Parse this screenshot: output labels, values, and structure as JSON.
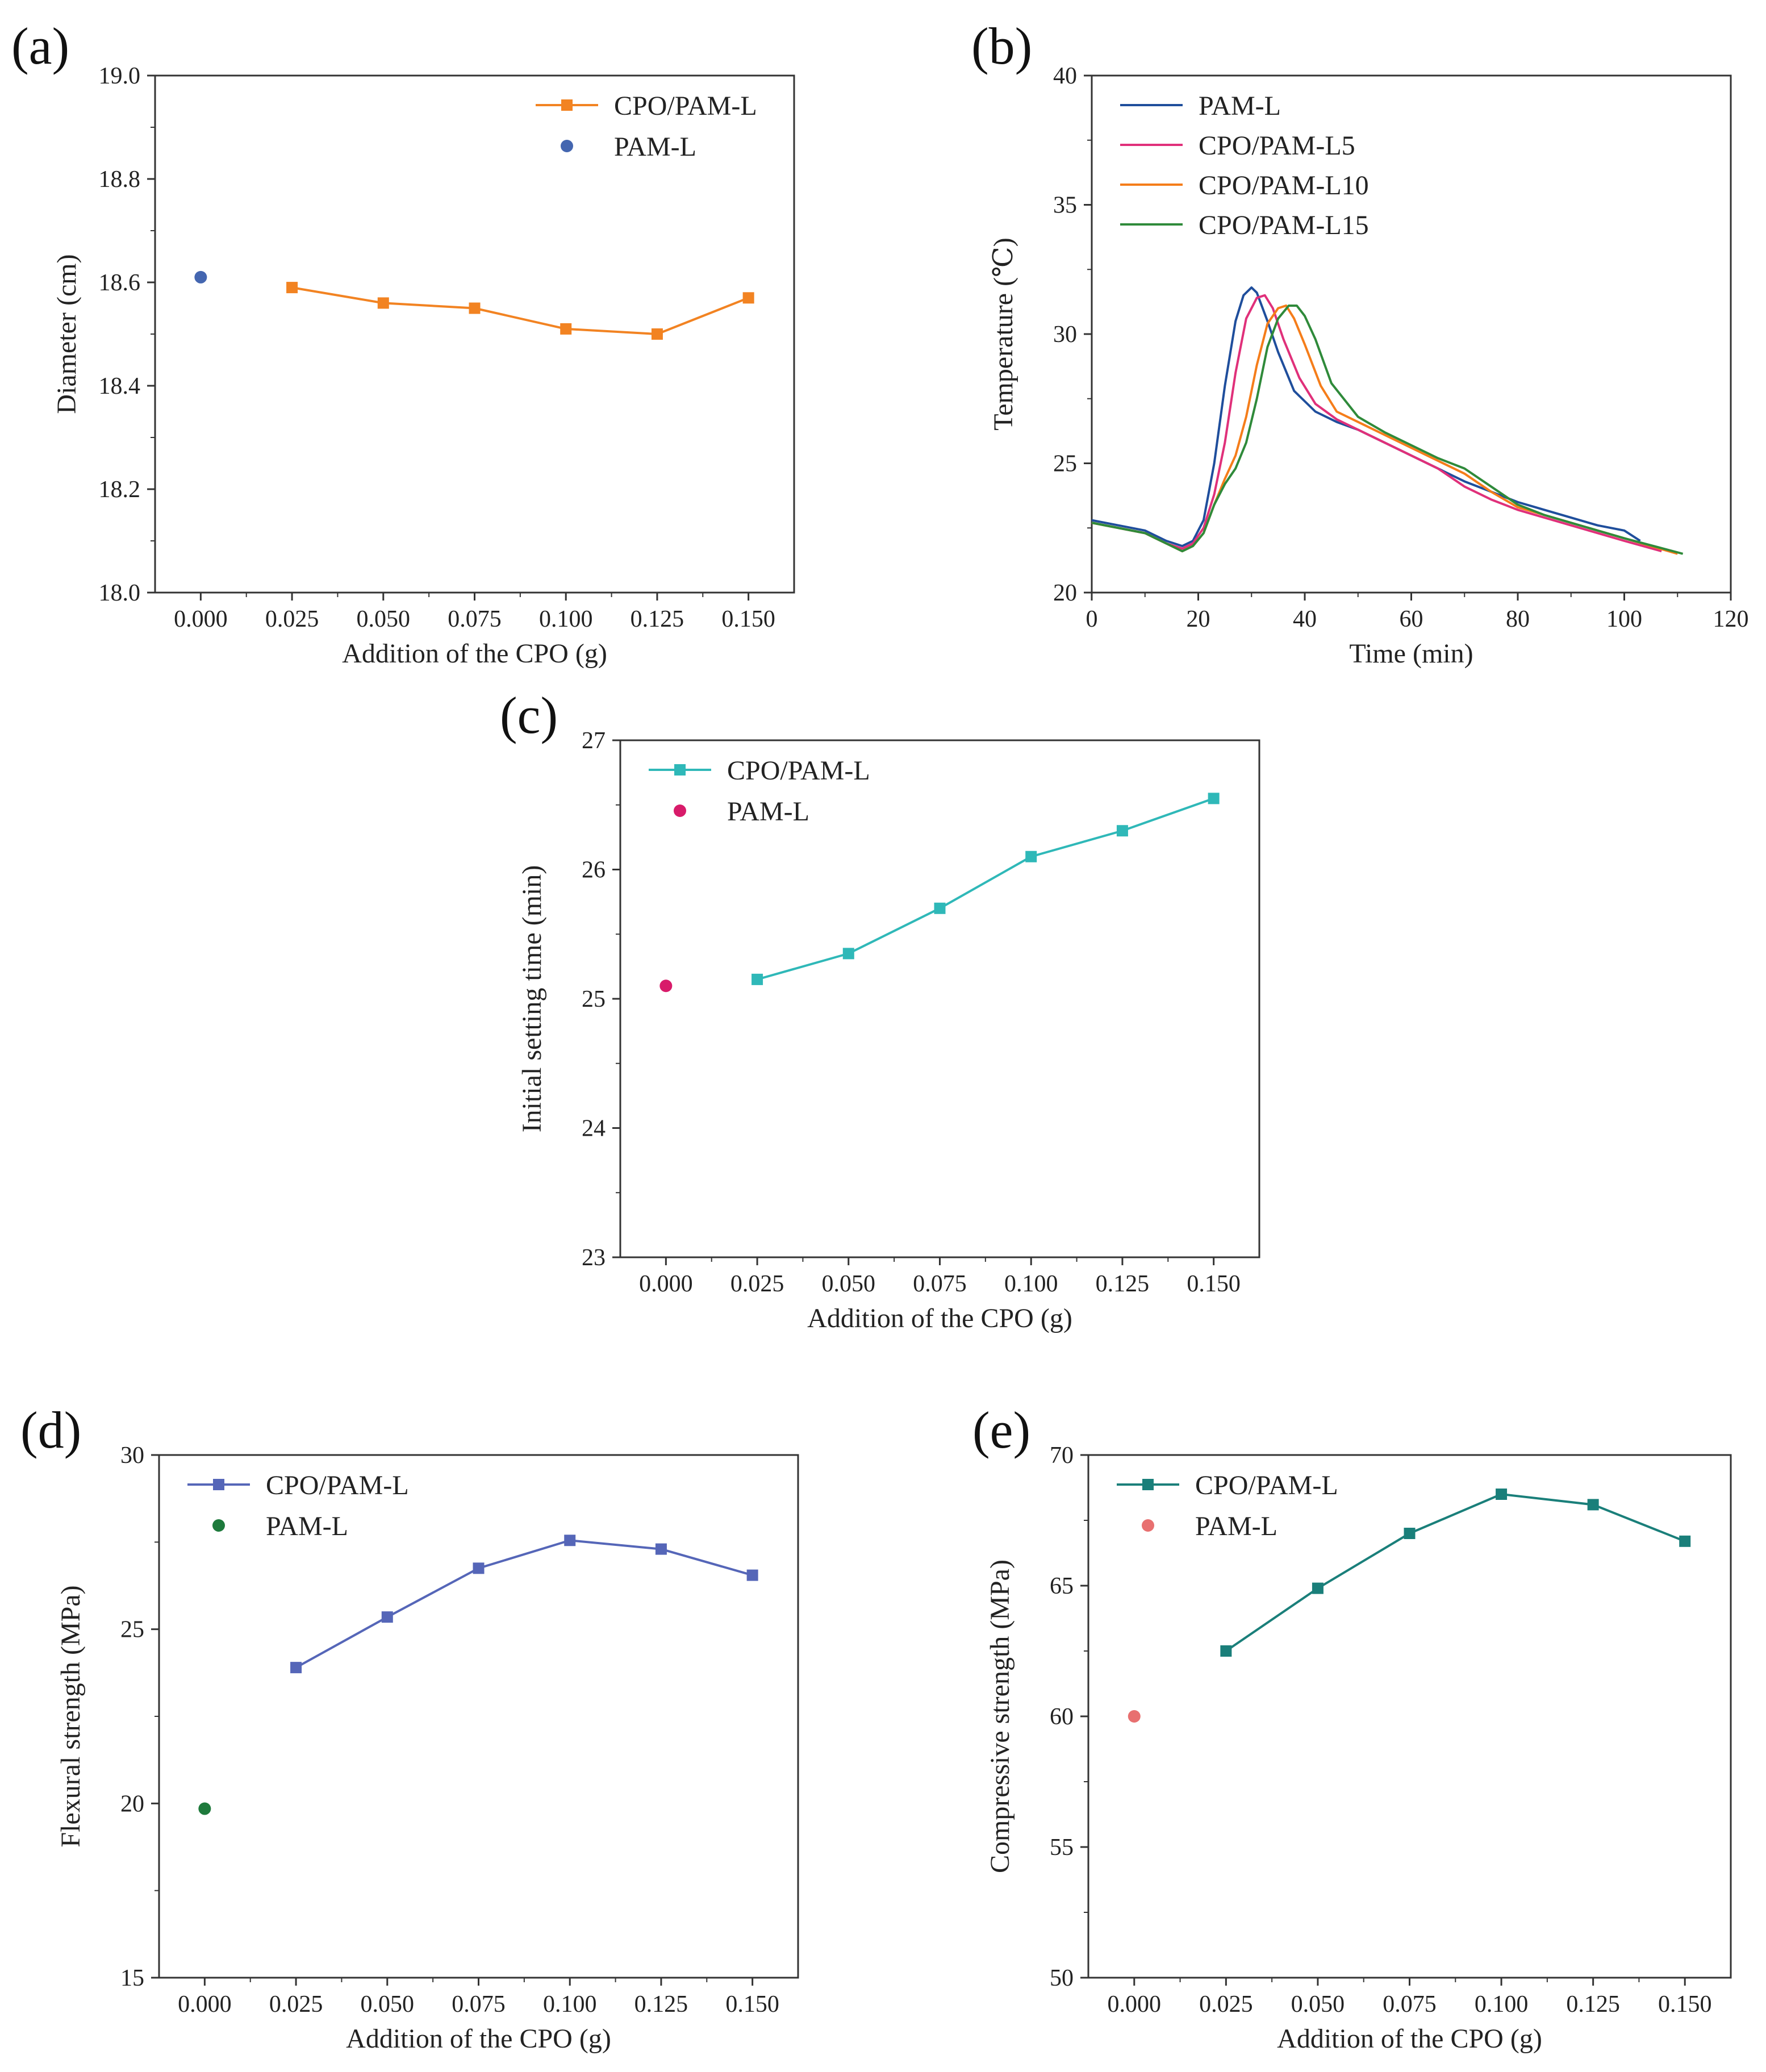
{
  "figure_title": "",
  "chart_data": [
    {
      "id": "a",
      "panel_label": "(a)",
      "type": "line",
      "xlabel": "Addition of the CPO (g)",
      "ylabel": "Diameter (cm)",
      "xlim": [
        -0.0125,
        0.1625
      ],
      "ylim": [
        18.0,
        19.0
      ],
      "xticks": [
        0,
        0.025,
        0.05,
        0.075,
        0.1,
        0.125,
        0.15
      ],
      "xtick_labels": [
        "0.000",
        "0.025",
        "0.050",
        "0.075",
        "0.100",
        "0.125",
        "0.150"
      ],
      "yticks": [
        18.0,
        18.2,
        18.4,
        18.6,
        18.8,
        19.0
      ],
      "ytick_labels": [
        "18.0",
        "18.2",
        "18.4",
        "18.6",
        "18.8",
        "19.0"
      ],
      "legend_position": "top-right",
      "series": [
        {
          "name": "CPO/PAM-L",
          "color": "#f28322",
          "marker": "square",
          "line": true,
          "x": [
            0.025,
            0.05,
            0.075,
            0.1,
            0.125,
            0.15
          ],
          "y": [
            18.59,
            18.56,
            18.55,
            18.51,
            18.5,
            18.57
          ]
        },
        {
          "name": "PAM-L",
          "color": "#4466b0",
          "marker": "circle",
          "line": false,
          "x": [
            0
          ],
          "y": [
            18.61
          ]
        }
      ]
    },
    {
      "id": "b",
      "panel_label": "(b)",
      "type": "line",
      "xlabel": "Time (min)",
      "ylabel": "Temperature (℃)",
      "xlim": [
        0,
        120
      ],
      "ylim": [
        20,
        40
      ],
      "xticks": [
        0,
        20,
        40,
        60,
        80,
        100,
        120
      ],
      "xtick_labels": [
        "0",
        "20",
        "40",
        "60",
        "80",
        "100",
        "120"
      ],
      "yticks": [
        20,
        25,
        30,
        35,
        40
      ],
      "ytick_labels": [
        "20",
        "25",
        "30",
        "35",
        "40"
      ],
      "legend_position": "top-left",
      "series": [
        {
          "name": "PAM-L",
          "color": "#1f4e9c",
          "marker": "none",
          "line": true,
          "x": [
            0,
            5,
            10,
            14,
            17,
            19,
            21,
            23,
            25,
            27,
            28.5,
            30,
            31,
            33,
            35,
            38,
            42,
            46,
            50,
            55,
            60,
            65,
            70,
            75,
            80,
            85,
            90,
            95,
            100,
            103
          ],
          "y": [
            22.8,
            22.6,
            22.4,
            22.0,
            21.8,
            22.0,
            22.8,
            25.0,
            28.0,
            30.5,
            31.5,
            31.8,
            31.6,
            30.5,
            29.3,
            27.8,
            27.0,
            26.6,
            26.3,
            25.8,
            25.3,
            24.8,
            24.3,
            23.9,
            23.5,
            23.2,
            22.9,
            22.6,
            22.4,
            22.0
          ]
        },
        {
          "name": "CPO/PAM-L5",
          "color": "#e0307a",
          "marker": "none",
          "line": true,
          "x": [
            0,
            5,
            10,
            14,
            17,
            19,
            21,
            23,
            25,
            27,
            29,
            31,
            32.5,
            34,
            36,
            39,
            42,
            46,
            50,
            55,
            60,
            65,
            70,
            75,
            80,
            85,
            90,
            95,
            100,
            107
          ],
          "y": [
            22.7,
            22.5,
            22.3,
            21.9,
            21.7,
            21.9,
            22.5,
            23.8,
            25.8,
            28.5,
            30.6,
            31.4,
            31.5,
            31.0,
            29.8,
            28.3,
            27.3,
            26.7,
            26.3,
            25.8,
            25.3,
            24.8,
            24.1,
            23.6,
            23.2,
            22.9,
            22.6,
            22.3,
            22.0,
            21.6
          ]
        },
        {
          "name": "CPO/PAM-L10",
          "color": "#f57d1a",
          "marker": "none",
          "line": true,
          "x": [
            0,
            5,
            10,
            14,
            17,
            19,
            21,
            23,
            25,
            27,
            29,
            31,
            33,
            35,
            36.5,
            38,
            40,
            43,
            46,
            50,
            55,
            60,
            65,
            70,
            75,
            80,
            85,
            90,
            95,
            100,
            110
          ],
          "y": [
            22.7,
            22.5,
            22.3,
            21.9,
            21.6,
            21.8,
            22.3,
            23.4,
            24.4,
            25.3,
            26.8,
            28.8,
            30.4,
            31.0,
            31.1,
            30.6,
            29.6,
            28.0,
            27.0,
            26.6,
            26.1,
            25.6,
            25.1,
            24.6,
            23.9,
            23.3,
            23.0,
            22.7,
            22.4,
            22.1,
            21.5
          ]
        },
        {
          "name": "CPO/PAM-L15",
          "color": "#2f8a3a",
          "marker": "none",
          "line": true,
          "x": [
            0,
            5,
            10,
            14,
            17,
            19,
            21,
            23,
            25,
            27,
            29,
            31,
            33,
            35,
            37,
            38.5,
            40,
            42,
            45,
            50,
            55,
            60,
            65,
            70,
            75,
            80,
            85,
            90,
            95,
            100,
            111
          ],
          "y": [
            22.7,
            22.5,
            22.3,
            21.9,
            21.6,
            21.8,
            22.3,
            23.4,
            24.2,
            24.8,
            25.8,
            27.5,
            29.5,
            30.6,
            31.1,
            31.1,
            30.7,
            29.8,
            28.1,
            26.8,
            26.2,
            25.7,
            25.2,
            24.8,
            24.1,
            23.4,
            23.0,
            22.7,
            22.4,
            22.1,
            21.5
          ]
        }
      ]
    },
    {
      "id": "c",
      "panel_label": "(c)",
      "type": "line",
      "xlabel": "Addition of the CPO (g)",
      "ylabel": "Initial setting time (min)",
      "xlim": [
        -0.0125,
        0.1625
      ],
      "ylim": [
        23,
        27
      ],
      "xticks": [
        0,
        0.025,
        0.05,
        0.075,
        0.1,
        0.125,
        0.15
      ],
      "xtick_labels": [
        "0.000",
        "0.025",
        "0.050",
        "0.075",
        "0.100",
        "0.125",
        "0.150"
      ],
      "yticks": [
        23,
        24,
        25,
        26,
        27
      ],
      "ytick_labels": [
        "23",
        "24",
        "25",
        "26",
        "27"
      ],
      "legend_position": "top-left",
      "series": [
        {
          "name": "CPO/PAM-L",
          "color": "#2fb8b8",
          "marker": "square",
          "line": true,
          "x": [
            0.025,
            0.05,
            0.075,
            0.1,
            0.125,
            0.15
          ],
          "y": [
            25.15,
            25.35,
            25.7,
            26.1,
            26.3,
            26.55
          ]
        },
        {
          "name": "PAM-L",
          "color": "#d81b6a",
          "marker": "circle",
          "line": false,
          "x": [
            0
          ],
          "y": [
            25.1
          ]
        }
      ]
    },
    {
      "id": "d",
      "panel_label": "(d)",
      "type": "line",
      "xlabel": "Addition of the CPO (g)",
      "ylabel": "Flexural strength (MPa)",
      "xlim": [
        -0.0125,
        0.1625
      ],
      "ylim": [
        15,
        30
      ],
      "xticks": [
        0,
        0.025,
        0.05,
        0.075,
        0.1,
        0.125,
        0.15
      ],
      "xtick_labels": [
        "0.000",
        "0.025",
        "0.050",
        "0.075",
        "0.100",
        "0.125",
        "0.150"
      ],
      "yticks": [
        15,
        20,
        25,
        30
      ],
      "ytick_labels": [
        "15",
        "20",
        "25",
        "30"
      ],
      "legend_position": "top-left",
      "series": [
        {
          "name": "CPO/PAM-L",
          "color": "#5566b8",
          "marker": "square",
          "line": true,
          "x": [
            0.025,
            0.05,
            0.075,
            0.1,
            0.125,
            0.15
          ],
          "y": [
            23.9,
            25.35,
            26.75,
            27.55,
            27.3,
            26.55
          ]
        },
        {
          "name": "PAM-L",
          "color": "#1e7a3c",
          "marker": "circle",
          "line": false,
          "x": [
            0
          ],
          "y": [
            19.85
          ]
        }
      ]
    },
    {
      "id": "e",
      "panel_label": "(e)",
      "type": "line",
      "xlabel": "Addition of the CPO (g)",
      "ylabel": "Compressive strength (MPa)",
      "xlim": [
        -0.0125,
        0.1625
      ],
      "ylim": [
        50,
        70
      ],
      "xticks": [
        0,
        0.025,
        0.05,
        0.075,
        0.1,
        0.125,
        0.15
      ],
      "xtick_labels": [
        "0.000",
        "0.025",
        "0.050",
        "0.075",
        "0.100",
        "0.125",
        "0.150"
      ],
      "yticks": [
        50,
        55,
        60,
        65,
        70
      ],
      "ytick_labels": [
        "50",
        "55",
        "60",
        "65",
        "70"
      ],
      "legend_position": "top-left",
      "series": [
        {
          "name": "CPO/PAM-L",
          "color": "#1a7f7a",
          "marker": "square",
          "line": true,
          "x": [
            0.025,
            0.05,
            0.075,
            0.1,
            0.125,
            0.15
          ],
          "y": [
            62.5,
            64.9,
            67.0,
            68.5,
            68.1,
            66.7
          ]
        },
        {
          "name": "PAM-L",
          "color": "#e87070",
          "marker": "circle",
          "line": false,
          "x": [
            0
          ],
          "y": [
            60.0
          ]
        }
      ]
    }
  ]
}
